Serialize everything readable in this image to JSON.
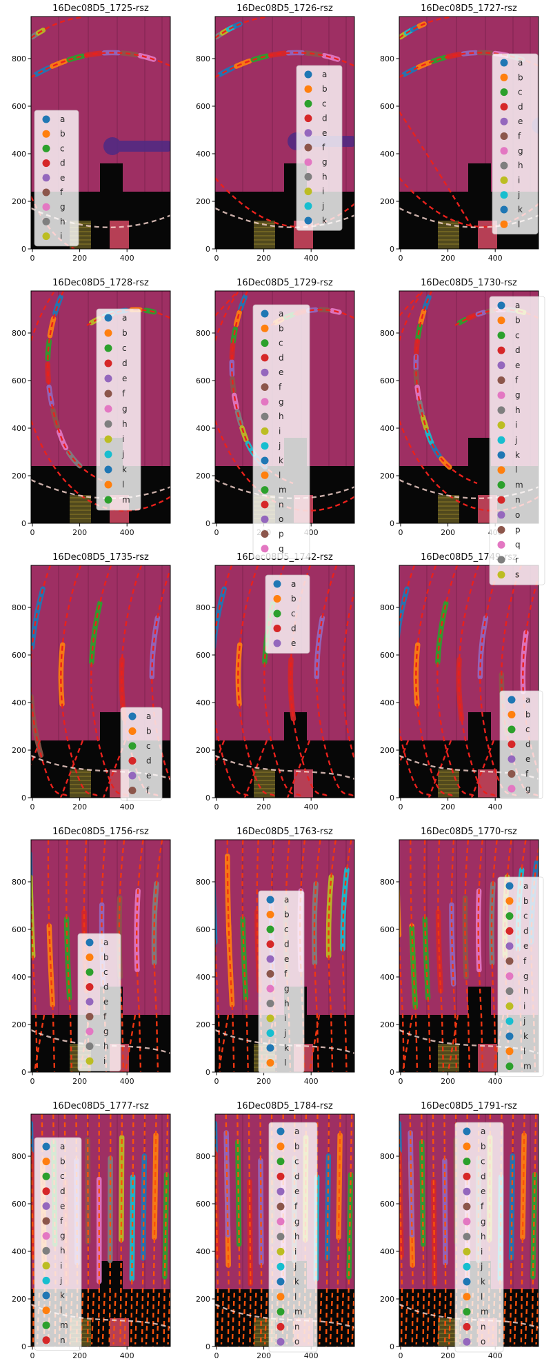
{
  "figure_title": "",
  "colors": {
    "plot_background": "#9e2f63",
    "black_region": "#070707",
    "dash_red": "#e9211c",
    "dash_red_orange": "#ee3612",
    "dash_orange": "#f8510b",
    "pale_dash": "#f9d7cf",
    "hatch_rect": "#51491d",
    "hatch_line": "#8f7d26",
    "pink_rect": "#c5445c",
    "purple_blob": "#4e2a84",
    "legend_bg_opacity": "0.8",
    "tab10": [
      "#1f77b4",
      "#ff7f0e",
      "#2ca02c",
      "#d62728",
      "#9467bd",
      "#8c564b",
      "#e377c2",
      "#7f7f7f",
      "#bcbd22",
      "#17becf"
    ]
  },
  "chart_data": {
    "type": "image",
    "grid": {
      "rows": 5,
      "cols": 3
    },
    "x_ticks": [
      "0",
      "200",
      "400"
    ],
    "y_ticks": [
      "0",
      "200",
      "400",
      "600",
      "800"
    ],
    "x_range": [
      0,
      580
    ],
    "y_range": [
      0,
      950
    ],
    "subplots": [
      {
        "title": "16Dec08D5_1725-rsz",
        "legend": [
          {
            "label": "a",
            "color": "#1f77b4"
          },
          {
            "label": "b",
            "color": "#ff7f0e"
          },
          {
            "label": "c",
            "color": "#2ca02c"
          },
          {
            "label": "d",
            "color": "#d62728"
          },
          {
            "label": "e",
            "color": "#9467bd"
          },
          {
            "label": "f",
            "color": "#8c564b"
          },
          {
            "label": "g",
            "color": "#e377c2"
          },
          {
            "label": "h",
            "color": "#7f7f7f"
          },
          {
            "label": "i",
            "color": "#bcbd22"
          }
        ]
      },
      {
        "title": "16Dec08D5_1726-rsz",
        "legend": [
          {
            "label": "a",
            "color": "#1f77b4"
          },
          {
            "label": "b",
            "color": "#ff7f0e"
          },
          {
            "label": "c",
            "color": "#2ca02c"
          },
          {
            "label": "d",
            "color": "#d62728"
          },
          {
            "label": "e",
            "color": "#9467bd"
          },
          {
            "label": "f",
            "color": "#8c564b"
          },
          {
            "label": "g",
            "color": "#e377c2"
          },
          {
            "label": "h",
            "color": "#7f7f7f"
          },
          {
            "label": "i",
            "color": "#bcbd22"
          },
          {
            "label": "j",
            "color": "#17becf"
          },
          {
            "label": "k",
            "color": "#1f77b4"
          }
        ]
      },
      {
        "title": "16Dec08D5_1727-rsz",
        "legend": [
          {
            "label": "a",
            "color": "#1f77b4"
          },
          {
            "label": "b",
            "color": "#ff7f0e"
          },
          {
            "label": "c",
            "color": "#2ca02c"
          },
          {
            "label": "d",
            "color": "#d62728"
          },
          {
            "label": "e",
            "color": "#9467bd"
          },
          {
            "label": "f",
            "color": "#8c564b"
          },
          {
            "label": "g",
            "color": "#e377c2"
          },
          {
            "label": "h",
            "color": "#7f7f7f"
          },
          {
            "label": "i",
            "color": "#bcbd22"
          },
          {
            "label": "j",
            "color": "#17becf"
          },
          {
            "label": "k",
            "color": "#1f77b4"
          },
          {
            "label": "l",
            "color": "#ff7f0e"
          }
        ]
      },
      {
        "title": "16Dec08D5_1728-rsz",
        "legend": [
          {
            "label": "a",
            "color": "#1f77b4"
          },
          {
            "label": "b",
            "color": "#ff7f0e"
          },
          {
            "label": "c",
            "color": "#2ca02c"
          },
          {
            "label": "d",
            "color": "#d62728"
          },
          {
            "label": "e",
            "color": "#9467bd"
          },
          {
            "label": "f",
            "color": "#8c564b"
          },
          {
            "label": "g",
            "color": "#e377c2"
          },
          {
            "label": "h",
            "color": "#7f7f7f"
          },
          {
            "label": "i",
            "color": "#bcbd22"
          },
          {
            "label": "j",
            "color": "#17becf"
          },
          {
            "label": "k",
            "color": "#1f77b4"
          },
          {
            "label": "l",
            "color": "#ff7f0e"
          },
          {
            "label": "m",
            "color": "#2ca02c"
          }
        ]
      },
      {
        "title": "16Dec08D5_1729-rsz",
        "legend": [
          {
            "label": "a",
            "color": "#1f77b4"
          },
          {
            "label": "b",
            "color": "#ff7f0e"
          },
          {
            "label": "c",
            "color": "#2ca02c"
          },
          {
            "label": "d",
            "color": "#d62728"
          },
          {
            "label": "e",
            "color": "#9467bd"
          },
          {
            "label": "f",
            "color": "#8c564b"
          },
          {
            "label": "g",
            "color": "#e377c2"
          },
          {
            "label": "h",
            "color": "#7f7f7f"
          },
          {
            "label": "i",
            "color": "#bcbd22"
          },
          {
            "label": "j",
            "color": "#17becf"
          },
          {
            "label": "k",
            "color": "#1f77b4"
          },
          {
            "label": "l",
            "color": "#ff7f0e"
          },
          {
            "label": "m",
            "color": "#2ca02c"
          },
          {
            "label": "n",
            "color": "#d62728"
          },
          {
            "label": "o",
            "color": "#9467bd"
          },
          {
            "label": "p",
            "color": "#8c564b"
          },
          {
            "label": "q",
            "color": "#e377c2"
          }
        ]
      },
      {
        "title": "16Dec08D5_1730-rsz",
        "legend": [
          {
            "label": "a",
            "color": "#1f77b4"
          },
          {
            "label": "b",
            "color": "#ff7f0e"
          },
          {
            "label": "c",
            "color": "#2ca02c"
          },
          {
            "label": "d",
            "color": "#d62728"
          },
          {
            "label": "e",
            "color": "#9467bd"
          },
          {
            "label": "f",
            "color": "#8c564b"
          },
          {
            "label": "g",
            "color": "#e377c2"
          },
          {
            "label": "h",
            "color": "#7f7f7f"
          },
          {
            "label": "i",
            "color": "#bcbd22"
          },
          {
            "label": "j",
            "color": "#17becf"
          },
          {
            "label": "k",
            "color": "#1f77b4"
          },
          {
            "label": "l",
            "color": "#ff7f0e"
          },
          {
            "label": "m",
            "color": "#2ca02c"
          },
          {
            "label": "n",
            "color": "#d62728"
          },
          {
            "label": "o",
            "color": "#9467bd"
          },
          {
            "label": "p",
            "color": "#8c564b"
          },
          {
            "label": "q",
            "color": "#e377c2"
          },
          {
            "label": "r",
            "color": "#7f7f7f"
          },
          {
            "label": "s",
            "color": "#bcbd22"
          }
        ]
      },
      {
        "title": "16Dec08D5_1735-rsz",
        "legend": [
          {
            "label": "a",
            "color": "#1f77b4"
          },
          {
            "label": "b",
            "color": "#ff7f0e"
          },
          {
            "label": "c",
            "color": "#2ca02c"
          },
          {
            "label": "d",
            "color": "#d62728"
          },
          {
            "label": "e",
            "color": "#9467bd"
          },
          {
            "label": "f",
            "color": "#8c564b"
          }
        ]
      },
      {
        "title": "16Dec08D5_1742-rsz",
        "legend": [
          {
            "label": "a",
            "color": "#1f77b4"
          },
          {
            "label": "b",
            "color": "#ff7f0e"
          },
          {
            "label": "c",
            "color": "#2ca02c"
          },
          {
            "label": "d",
            "color": "#d62728"
          },
          {
            "label": "e",
            "color": "#9467bd"
          }
        ]
      },
      {
        "title": "16Dec08D5_1749-rsz",
        "legend": [
          {
            "label": "a",
            "color": "#1f77b4"
          },
          {
            "label": "b",
            "color": "#ff7f0e"
          },
          {
            "label": "c",
            "color": "#2ca02c"
          },
          {
            "label": "d",
            "color": "#d62728"
          },
          {
            "label": "e",
            "color": "#9467bd"
          },
          {
            "label": "f",
            "color": "#8c564b"
          },
          {
            "label": "g",
            "color": "#e377c2"
          }
        ]
      },
      {
        "title": "16Dec08D5_1756-rsz",
        "legend": [
          {
            "label": "a",
            "color": "#1f77b4"
          },
          {
            "label": "b",
            "color": "#ff7f0e"
          },
          {
            "label": "c",
            "color": "#2ca02c"
          },
          {
            "label": "d",
            "color": "#d62728"
          },
          {
            "label": "e",
            "color": "#9467bd"
          },
          {
            "label": "f",
            "color": "#8c564b"
          },
          {
            "label": "g",
            "color": "#e377c2"
          },
          {
            "label": "h",
            "color": "#7f7f7f"
          },
          {
            "label": "i",
            "color": "#bcbd22"
          }
        ]
      },
      {
        "title": "16Dec08D5_1763-rsz",
        "legend": [
          {
            "label": "a",
            "color": "#1f77b4"
          },
          {
            "label": "b",
            "color": "#ff7f0e"
          },
          {
            "label": "c",
            "color": "#2ca02c"
          },
          {
            "label": "d",
            "color": "#d62728"
          },
          {
            "label": "e",
            "color": "#9467bd"
          },
          {
            "label": "f",
            "color": "#8c564b"
          },
          {
            "label": "g",
            "color": "#e377c2"
          },
          {
            "label": "h",
            "color": "#7f7f7f"
          },
          {
            "label": "i",
            "color": "#bcbd22"
          },
          {
            "label": "j",
            "color": "#17becf"
          },
          {
            "label": "k",
            "color": "#1f77b4"
          },
          {
            "label": "l",
            "color": "#ff7f0e"
          }
        ]
      },
      {
        "title": "16Dec08D5_1770-rsz",
        "legend": [
          {
            "label": "a",
            "color": "#1f77b4"
          },
          {
            "label": "b",
            "color": "#ff7f0e"
          },
          {
            "label": "c",
            "color": "#2ca02c"
          },
          {
            "label": "d",
            "color": "#d62728"
          },
          {
            "label": "e",
            "color": "#9467bd"
          },
          {
            "label": "f",
            "color": "#8c564b"
          },
          {
            "label": "g",
            "color": "#e377c2"
          },
          {
            "label": "h",
            "color": "#7f7f7f"
          },
          {
            "label": "i",
            "color": "#bcbd22"
          },
          {
            "label": "j",
            "color": "#17becf"
          },
          {
            "label": "k",
            "color": "#1f77b4"
          },
          {
            "label": "l",
            "color": "#ff7f0e"
          },
          {
            "label": "m",
            "color": "#2ca02c"
          }
        ]
      },
      {
        "title": "16Dec08D5_1777-rsz",
        "legend": [
          {
            "label": "a",
            "color": "#1f77b4"
          },
          {
            "label": "b",
            "color": "#ff7f0e"
          },
          {
            "label": "c",
            "color": "#2ca02c"
          },
          {
            "label": "d",
            "color": "#d62728"
          },
          {
            "label": "e",
            "color": "#9467bd"
          },
          {
            "label": "f",
            "color": "#8c564b"
          },
          {
            "label": "g",
            "color": "#e377c2"
          },
          {
            "label": "h",
            "color": "#7f7f7f"
          },
          {
            "label": "i",
            "color": "#bcbd22"
          },
          {
            "label": "j",
            "color": "#17becf"
          },
          {
            "label": "k",
            "color": "#1f77b4"
          },
          {
            "label": "l",
            "color": "#ff7f0e"
          },
          {
            "label": "m",
            "color": "#2ca02c"
          },
          {
            "label": "n",
            "color": "#d62728"
          }
        ]
      },
      {
        "title": "16Dec08D5_1784-rsz",
        "legend": [
          {
            "label": "a",
            "color": "#1f77b4"
          },
          {
            "label": "b",
            "color": "#ff7f0e"
          },
          {
            "label": "c",
            "color": "#2ca02c"
          },
          {
            "label": "d",
            "color": "#d62728"
          },
          {
            "label": "e",
            "color": "#9467bd"
          },
          {
            "label": "f",
            "color": "#8c564b"
          },
          {
            "label": "g",
            "color": "#e377c2"
          },
          {
            "label": "h",
            "color": "#7f7f7f"
          },
          {
            "label": "i",
            "color": "#bcbd22"
          },
          {
            "label": "j",
            "color": "#17becf"
          },
          {
            "label": "k",
            "color": "#1f77b4"
          },
          {
            "label": "l",
            "color": "#ff7f0e"
          },
          {
            "label": "m",
            "color": "#2ca02c"
          },
          {
            "label": "n",
            "color": "#d62728"
          },
          {
            "label": "o",
            "color": "#9467bd"
          }
        ]
      },
      {
        "title": "16Dec08D5_1791-rsz",
        "legend": [
          {
            "label": "a",
            "color": "#1f77b4"
          },
          {
            "label": "b",
            "color": "#ff7f0e"
          },
          {
            "label": "c",
            "color": "#2ca02c"
          },
          {
            "label": "d",
            "color": "#d62728"
          },
          {
            "label": "e",
            "color": "#9467bd"
          },
          {
            "label": "f",
            "color": "#8c564b"
          },
          {
            "label": "g",
            "color": "#e377c2"
          },
          {
            "label": "h",
            "color": "#7f7f7f"
          },
          {
            "label": "i",
            "color": "#bcbd22"
          },
          {
            "label": "j",
            "color": "#17becf"
          },
          {
            "label": "k",
            "color": "#1f77b4"
          },
          {
            "label": "l",
            "color": "#ff7f0e"
          },
          {
            "label": "m",
            "color": "#2ca02c"
          },
          {
            "label": "n",
            "color": "#d62728"
          },
          {
            "label": "o",
            "color": "#9467bd"
          }
        ]
      }
    ]
  }
}
